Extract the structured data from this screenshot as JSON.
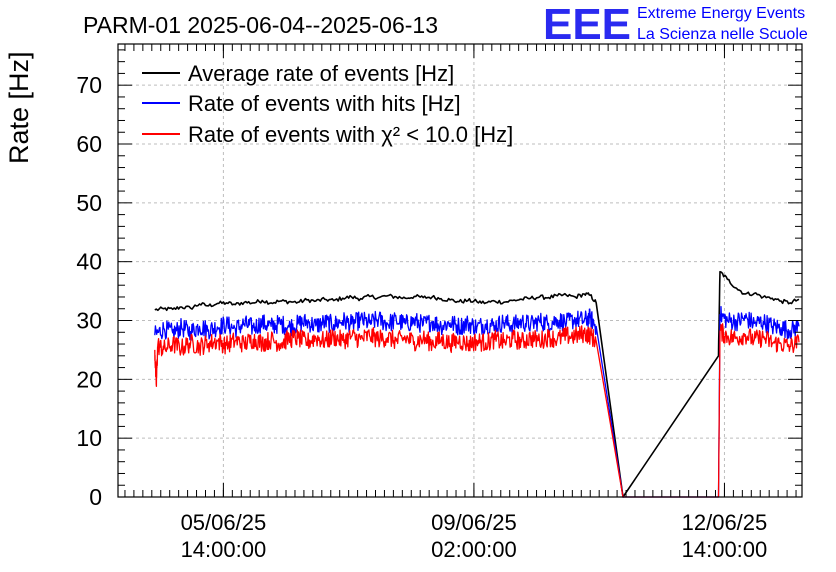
{
  "header": {
    "title": "PARM-01 2025-06-04--2025-06-13",
    "logo_text": "EEE",
    "org_line1": "Extreme Energy Events",
    "org_line2": "La Scienza nelle Scuole"
  },
  "colors": {
    "logo": "#2a2af0",
    "org_text": "#0000ff",
    "average": "#000000",
    "hits": "#0000ff",
    "chi2": "#ff0000",
    "grid": "#bdbdbd"
  },
  "chart_data": {
    "type": "line",
    "title": "PARM-01 2025-06-04--2025-06-13",
    "xlabel": "",
    "ylabel": "Rate [Hz]",
    "ylim": [
      0,
      77
    ],
    "yticks": [
      0,
      10,
      20,
      30,
      40,
      50,
      60,
      70
    ],
    "xlim": [
      "2025-06-04 02:40",
      "2025-06-13 16:00"
    ],
    "xticks": [
      {
        "x": "2025-06-05 14:00:00",
        "date": "05/06/25",
        "time": "14:00:00"
      },
      {
        "x": "2025-06-09 02:00:00",
        "date": "09/06/25",
        "time": "02:00:00"
      },
      {
        "x": "2025-06-12 14:00:00",
        "date": "12/06/25",
        "time": "14:00:00"
      }
    ],
    "grid": true,
    "legend_position": "top-left",
    "series": [
      {
        "name": "Average rate of events [Hz]",
        "color": "#000000",
        "width": 1.6,
        "x": [
          "2025-06-04 15:00",
          "2025-06-04 18:00",
          "2025-06-04 21:00",
          "2025-06-05 00:00",
          "2025-06-05 03:00",
          "2025-06-05 06:00",
          "2025-06-05 09:00",
          "2025-06-05 12:00",
          "2025-06-05 15:00",
          "2025-06-05 18:00",
          "2025-06-05 21:00",
          "2025-06-06 00:00",
          "2025-06-06 03:00",
          "2025-06-06 06:00",
          "2025-06-06 09:00",
          "2025-06-06 12:00",
          "2025-06-06 15:00",
          "2025-06-06 18:00",
          "2025-06-06 21:00",
          "2025-06-07 00:00",
          "2025-06-07 03:00",
          "2025-06-07 06:00",
          "2025-06-07 09:00",
          "2025-06-07 12:00",
          "2025-06-07 15:00",
          "2025-06-07 18:00",
          "2025-06-07 21:00",
          "2025-06-08 00:00",
          "2025-06-08 03:00",
          "2025-06-08 06:00",
          "2025-06-08 09:00",
          "2025-06-08 12:00",
          "2025-06-08 15:00",
          "2025-06-08 18:00",
          "2025-06-08 21:00",
          "2025-06-09 00:00",
          "2025-06-09 03:00",
          "2025-06-09 06:00",
          "2025-06-09 09:00",
          "2025-06-09 12:00",
          "2025-06-09 15:00",
          "2025-06-09 18:00",
          "2025-06-09 21:00",
          "2025-06-10 00:00",
          "2025-06-10 03:00",
          "2025-06-10 06:00",
          "2025-06-10 09:00",
          "2025-06-10 12:00",
          "2025-06-10 15:00",
          "2025-06-10 17:00",
          "2025-06-10 19:00",
          "2025-06-11 04:00",
          "2025-06-12 12:00",
          "2025-06-12 12:30",
          "2025-06-12 15:00",
          "2025-06-12 18:00",
          "2025-06-12 21:00",
          "2025-06-13 00:00",
          "2025-06-13 03:00",
          "2025-06-13 06:00",
          "2025-06-13 09:00",
          "2025-06-13 12:00",
          "2025-06-13 15:00"
        ],
        "y": [
          31.8,
          32.0,
          31.9,
          32.3,
          32.1,
          32.8,
          32.5,
          32.9,
          33.0,
          32.7,
          33.1,
          33.0,
          33.4,
          33.0,
          33.3,
          33.2,
          33.1,
          33.5,
          33.3,
          33.6,
          33.4,
          33.8,
          34.0,
          33.7,
          34.1,
          33.9,
          34.2,
          34.0,
          33.8,
          34.1,
          33.9,
          34.0,
          33.7,
          33.5,
          33.2,
          33.4,
          33.2,
          33.0,
          33.3,
          33.1,
          33.4,
          33.6,
          33.8,
          34.0,
          33.9,
          34.2,
          34.3,
          34.0,
          34.5,
          34.3,
          33.0,
          0,
          24.0,
          38.3,
          37.0,
          35.5,
          34.5,
          34.6,
          34.0,
          33.8,
          33.3,
          33.0,
          33.6
        ]
      },
      {
        "name": "Rate of events with hits [Hz]",
        "color": "#0000ff",
        "width": 1.3,
        "x": [
          "2025-06-04 15:00",
          "2025-06-04 18:00",
          "2025-06-04 21:00",
          "2025-06-05 00:00",
          "2025-06-05 03:00",
          "2025-06-05 06:00",
          "2025-06-05 09:00",
          "2025-06-05 12:00",
          "2025-06-05 15:00",
          "2025-06-05 18:00",
          "2025-06-05 21:00",
          "2025-06-06 00:00",
          "2025-06-06 03:00",
          "2025-06-06 06:00",
          "2025-06-06 09:00",
          "2025-06-06 12:00",
          "2025-06-06 15:00",
          "2025-06-06 18:00",
          "2025-06-06 21:00",
          "2025-06-07 00:00",
          "2025-06-07 03:00",
          "2025-06-07 06:00",
          "2025-06-07 09:00",
          "2025-06-07 12:00",
          "2025-06-07 15:00",
          "2025-06-07 18:00",
          "2025-06-07 21:00",
          "2025-06-08 00:00",
          "2025-06-08 03:00",
          "2025-06-08 06:00",
          "2025-06-08 09:00",
          "2025-06-08 12:00",
          "2025-06-08 15:00",
          "2025-06-08 18:00",
          "2025-06-08 21:00",
          "2025-06-09 00:00",
          "2025-06-09 03:00",
          "2025-06-09 06:00",
          "2025-06-09 09:00",
          "2025-06-09 12:00",
          "2025-06-09 15:00",
          "2025-06-09 18:00",
          "2025-06-09 21:00",
          "2025-06-10 00:00",
          "2025-06-10 03:00",
          "2025-06-10 06:00",
          "2025-06-10 09:00",
          "2025-06-10 12:00",
          "2025-06-10 15:00",
          "2025-06-10 17:00",
          "2025-06-10 19:00",
          "2025-06-11 04:00",
          "2025-06-12 12:00",
          "2025-06-12 12:30",
          "2025-06-12 15:00",
          "2025-06-12 18:00",
          "2025-06-12 21:00",
          "2025-06-13 00:00",
          "2025-06-13 03:00",
          "2025-06-13 06:00",
          "2025-06-13 09:00",
          "2025-06-13 12:00",
          "2025-06-13 15:00"
        ],
        "y": [
          27.5,
          28.6,
          27.9,
          28.8,
          28.1,
          29.0,
          28.4,
          28.9,
          29.3,
          28.6,
          29.4,
          28.8,
          29.6,
          29.0,
          29.5,
          28.9,
          29.4,
          29.8,
          29.1,
          29.7,
          29.3,
          30.0,
          29.4,
          30.1,
          29.6,
          30.2,
          29.5,
          30.0,
          29.4,
          29.9,
          29.3,
          29.8,
          29.1,
          29.6,
          29.0,
          29.5,
          28.9,
          29.4,
          29.1,
          29.7,
          29.2,
          29.8,
          29.3,
          29.9,
          29.5,
          30.1,
          29.6,
          30.2,
          30.0,
          30.5,
          29.0,
          0,
          0,
          31.0,
          30.0,
          29.8,
          30.4,
          29.5,
          29.8,
          29.0,
          28.8,
          28.3,
          29.0
        ]
      },
      {
        "name": "Rate of events with χ² < 10.0 [Hz]",
        "color": "#ff0000",
        "width": 1.3,
        "x": [
          "2025-06-04 15:00",
          "2025-06-04 15:30",
          "2025-06-04 16:00",
          "2025-06-04 18:00",
          "2025-06-04 21:00",
          "2025-06-05 00:00",
          "2025-06-05 03:00",
          "2025-06-05 06:00",
          "2025-06-05 09:00",
          "2025-06-05 12:00",
          "2025-06-05 15:00",
          "2025-06-05 18:00",
          "2025-06-05 21:00",
          "2025-06-06 00:00",
          "2025-06-06 03:00",
          "2025-06-06 06:00",
          "2025-06-06 09:00",
          "2025-06-06 12:00",
          "2025-06-06 15:00",
          "2025-06-06 18:00",
          "2025-06-06 21:00",
          "2025-06-07 00:00",
          "2025-06-07 03:00",
          "2025-06-07 06:00",
          "2025-06-07 09:00",
          "2025-06-07 12:00",
          "2025-06-07 15:00",
          "2025-06-07 18:00",
          "2025-06-07 21:00",
          "2025-06-08 00:00",
          "2025-06-08 03:00",
          "2025-06-08 06:00",
          "2025-06-08 09:00",
          "2025-06-08 12:00",
          "2025-06-08 15:00",
          "2025-06-08 18:00",
          "2025-06-08 21:00",
          "2025-06-09 00:00",
          "2025-06-09 03:00",
          "2025-06-09 06:00",
          "2025-06-09 09:00",
          "2025-06-09 12:00",
          "2025-06-09 15:00",
          "2025-06-09 18:00",
          "2025-06-09 21:00",
          "2025-06-10 00:00",
          "2025-06-10 03:00",
          "2025-06-10 06:00",
          "2025-06-10 09:00",
          "2025-06-10 12:00",
          "2025-06-10 15:00",
          "2025-06-10 17:00",
          "2025-06-10 19:00",
          "2025-06-11 04:00",
          "2025-06-12 12:00",
          "2025-06-12 12:30",
          "2025-06-12 15:00",
          "2025-06-12 18:00",
          "2025-06-12 21:00",
          "2025-06-13 00:00",
          "2025-06-13 03:00",
          "2025-06-13 06:00",
          "2025-06-13 09:00",
          "2025-06-13 12:00",
          "2025-06-13 15:00"
        ],
        "y": [
          25.0,
          19.0,
          25.8,
          25.1,
          26.0,
          25.3,
          26.2,
          25.6,
          26.1,
          26.5,
          25.8,
          26.6,
          26.0,
          26.8,
          26.2,
          26.7,
          26.1,
          26.9,
          27.0,
          26.3,
          27.1,
          26.5,
          27.2,
          26.6,
          27.3,
          26.8,
          27.4,
          26.9,
          27.1,
          26.5,
          27.0,
          26.4,
          26.9,
          26.2,
          26.7,
          26.1,
          26.6,
          26.0,
          26.5,
          26.2,
          26.8,
          26.3,
          26.9,
          26.4,
          27.0,
          26.6,
          27.2,
          26.8,
          27.4,
          27.3,
          27.8,
          27.5,
          26.5,
          0,
          0,
          28.2,
          27.3,
          27.0,
          27.6,
          26.7,
          27.1,
          26.2,
          26.0,
          25.6,
          26.3
        ]
      }
    ]
  }
}
